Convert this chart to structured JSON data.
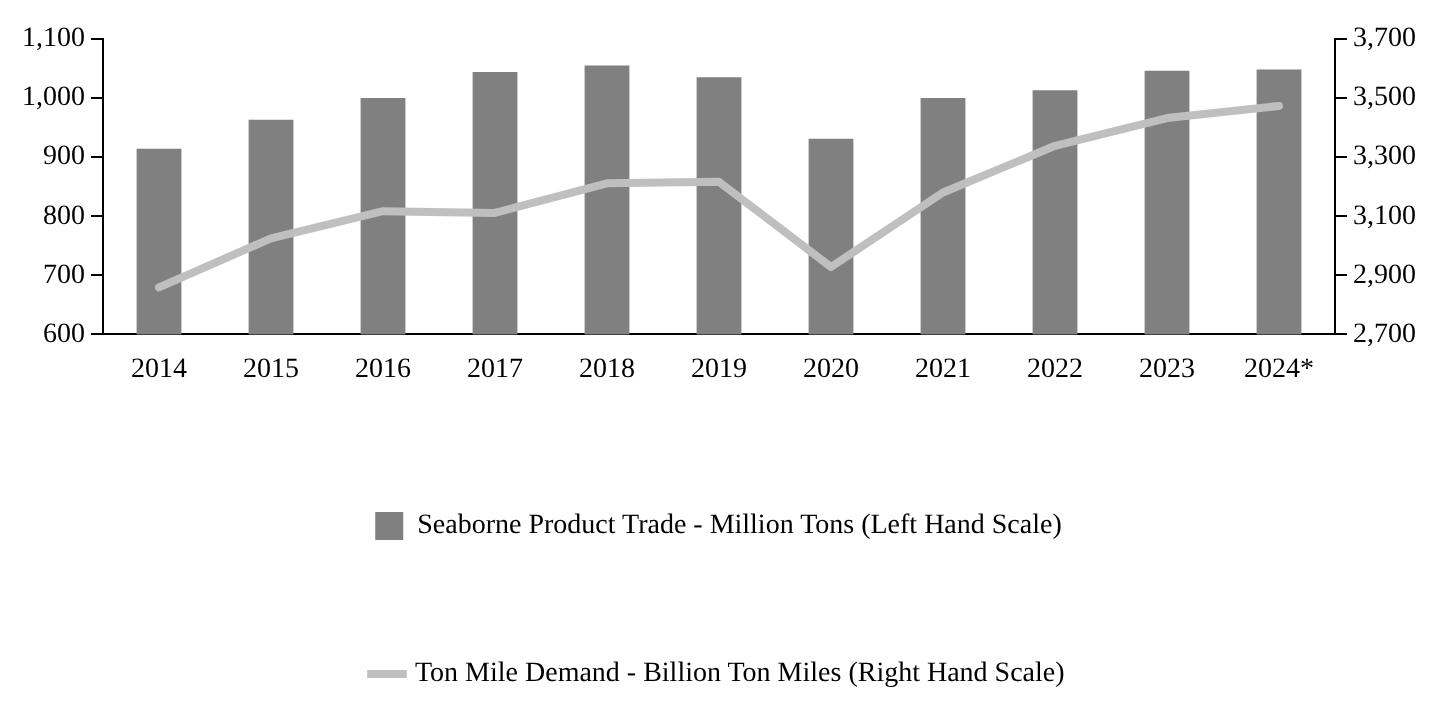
{
  "chart_data": {
    "type": "bar",
    "categories": [
      "2014",
      "2015",
      "2016",
      "2017",
      "2018",
      "2019",
      "2020",
      "2021",
      "2022",
      "2023",
      "2024*"
    ],
    "series": [
      {
        "name": "Seaborne Product Trade - Million Tons (Left Hand Scale)",
        "color": "#808080",
        "values": [
          914,
          963,
          1000,
          1044,
          1055,
          1035,
          931,
          1000,
          1013,
          1046,
          1048
        ]
      },
      {
        "name": "Ton Mile Demand - Billion Ton Miles (Right Hand Scale)",
        "type": "line",
        "axis": "y2",
        "color": "#bfbfbf",
        "values": [
          2859,
          3025,
          3117,
          3111,
          3211,
          3216,
          2928,
          3180,
          3338,
          3432,
          3473
        ]
      }
    ],
    "ylim": [
      600,
      1100
    ],
    "yticks": [
      {
        "value": 600,
        "label": "600"
      },
      {
        "value": 700,
        "label": "700"
      },
      {
        "value": 800,
        "label": "800"
      },
      {
        "value": 900,
        "label": "900"
      },
      {
        "value": 1000,
        "label": "1,000"
      },
      {
        "value": 1100,
        "label": "1,100"
      }
    ],
    "y2lim": [
      2700,
      3700
    ],
    "y2ticks": [
      {
        "value": 2700,
        "label": "2,700"
      },
      {
        "value": 2900,
        "label": "2,900"
      },
      {
        "value": 3100,
        "label": "3,100"
      },
      {
        "value": 3300,
        "label": "3,300"
      },
      {
        "value": 3500,
        "label": "3,500"
      },
      {
        "value": 3700,
        "label": "3,700"
      }
    ],
    "grid": false,
    "legend": "bottom",
    "marker": "none"
  }
}
